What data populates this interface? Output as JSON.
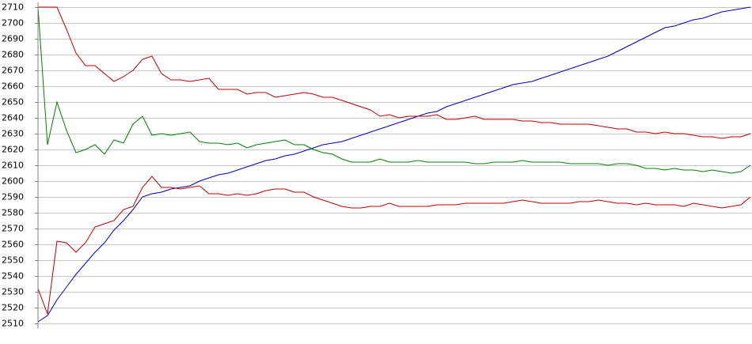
{
  "chart_data": {
    "type": "line",
    "ylim": [
      2507,
      2713
    ],
    "yticks": [
      2510,
      2520,
      2530,
      2540,
      2550,
      2560,
      2570,
      2580,
      2590,
      2600,
      2610,
      2620,
      2630,
      2640,
      2650,
      2660,
      2670,
      2680,
      2690,
      2700,
      2710
    ],
    "grid": true,
    "categories": [
      null,
      null,
      null,
      null,
      null,
      null,
      null,
      null,
      null,
      null,
      null,
      null,
      null,
      null,
      null,
      null,
      null,
      null,
      null,
      null,
      null,
      null,
      null,
      null,
      null,
      null,
      null,
      null,
      null,
      null,
      null,
      null,
      null,
      null,
      null,
      null,
      null,
      null,
      null,
      null,
      null,
      null,
      null,
      null,
      null,
      null,
      null,
      null,
      null,
      null,
      null,
      null,
      null,
      null,
      null,
      null,
      null,
      null,
      null,
      null,
      null,
      null,
      null,
      null,
      null,
      null,
      null,
      null,
      null,
      null,
      null,
      null,
      null,
      null,
      null,
      null
    ],
    "series": [
      {
        "color": "#0000c0",
        "values": [
          2511,
          2515,
          2525,
          2533,
          2541,
          2548,
          2555,
          2561,
          2569,
          2575,
          2582,
          2590,
          2592,
          2593,
          2595,
          2596,
          2597,
          2600,
          2602,
          2604,
          2605,
          2607,
          2609,
          2611,
          2613,
          2614,
          2616,
          2617,
          2619,
          2621,
          2623,
          2624,
          2625,
          2627,
          2629,
          2631,
          2633,
          2635,
          2637,
          2639,
          2641,
          2643,
          2644,
          2647,
          2649,
          2651,
          2653,
          2655,
          2657,
          2659,
          2661,
          2662,
          2663,
          2665,
          2667,
          2669,
          2671,
          2673,
          2675,
          2677,
          2679,
          2682,
          2685,
          2688,
          2691,
          2694,
          2697,
          2698,
          2700,
          2702,
          2703,
          2705,
          2707,
          2708,
          2709,
          2710
        ]
      },
      {
        "color": "#c00000",
        "values": [
          2710,
          2710,
          2710,
          2696,
          2681,
          2673,
          2673,
          2668,
          2663,
          2666,
          2670,
          2677,
          2679,
          2668,
          2664,
          2664,
          2663,
          2664,
          2665,
          2658,
          2658,
          2658,
          2655,
          2656,
          2656,
          2653,
          2654,
          2655,
          2656,
          2655,
          2653,
          2653,
          2651,
          2649,
          2647,
          2645,
          2641,
          2642,
          2640,
          2641,
          2641,
          2641,
          2642,
          2639,
          2639,
          2640,
          2641,
          2639,
          2639,
          2639,
          2639,
          2638,
          2638,
          2637,
          2637,
          2636,
          2636,
          2636,
          2636,
          2635,
          2634,
          2633,
          2633,
          2631,
          2631,
          2630,
          2631,
          2630,
          2630,
          2629,
          2628,
          2628,
          2627,
          2628,
          2628,
          2630
        ]
      },
      {
        "color": "#008000",
        "values": [
          2710,
          2623,
          2650,
          2632,
          2618,
          2620,
          2623,
          2617,
          2626,
          2624,
          2636,
          2641,
          2629,
          2630,
          2629,
          2630,
          2631,
          2625,
          2624,
          2624,
          2623,
          2624,
          2621,
          2623,
          2624,
          2625,
          2626,
          2623,
          2623,
          2620,
          2618,
          2617,
          2614,
          2612,
          2612,
          2612,
          2614,
          2612,
          2612,
          2612,
          2613,
          2612,
          2612,
          2612,
          2612,
          2612,
          2611,
          2611,
          2612,
          2612,
          2612,
          2613,
          2612,
          2612,
          2612,
          2612,
          2611,
          2611,
          2611,
          2611,
          2610,
          2611,
          2611,
          2610,
          2608,
          2608,
          2607,
          2608,
          2607,
          2607,
          2606,
          2607,
          2606,
          2605,
          2606,
          2610
        ]
      },
      {
        "color": "#c00000",
        "values": [
          2532,
          2516,
          2562,
          2561,
          2555,
          2561,
          2571,
          2573,
          2575,
          2582,
          2584,
          2596,
          2603,
          2596,
          2596,
          2595,
          2596,
          2597,
          2592,
          2592,
          2591,
          2592,
          2591,
          2592,
          2594,
          2595,
          2595,
          2593,
          2593,
          2590,
          2588,
          2586,
          2584,
          2583,
          2583,
          2584,
          2584,
          2586,
          2584,
          2584,
          2584,
          2584,
          2585,
          2585,
          2585,
          2586,
          2586,
          2586,
          2586,
          2586,
          2587,
          2588,
          2587,
          2586,
          2586,
          2586,
          2586,
          2587,
          2587,
          2588,
          2587,
          2586,
          2586,
          2585,
          2586,
          2585,
          2585,
          2585,
          2584,
          2586,
          2585,
          2584,
          2583,
          2584,
          2585,
          2590
        ]
      }
    ]
  }
}
